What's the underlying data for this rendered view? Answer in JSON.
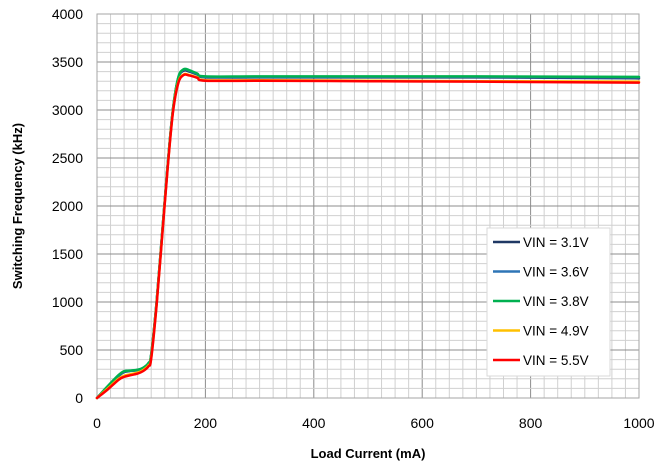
{
  "chart_data": {
    "type": "line",
    "title": "",
    "xlabel": "Load Current (mA)",
    "ylabel": "Switching Frequency (kHz)",
    "xlim": [
      0,
      1000
    ],
    "ylim": [
      0,
      4000
    ],
    "x_ticks": [
      "0",
      "200",
      "400",
      "600",
      "800",
      "1000"
    ],
    "y_ticks": [
      "0",
      "500",
      "1000",
      "1500",
      "2000",
      "2500",
      "3000",
      "3500",
      "4000"
    ],
    "grid": true,
    "legend_position": "bottom-right",
    "series": [
      {
        "name": "VIN = 3.1V",
        "color": "#1f3864",
        "points": [
          [
            0,
            0
          ],
          [
            20,
            120
          ],
          [
            40,
            230
          ],
          [
            50,
            270
          ],
          [
            60,
            280
          ],
          [
            75,
            290
          ],
          [
            85,
            310
          ],
          [
            95,
            360
          ],
          [
            100,
            450
          ],
          [
            110,
            1000
          ],
          [
            120,
            1700
          ],
          [
            130,
            2400
          ],
          [
            140,
            3000
          ],
          [
            150,
            3330
          ],
          [
            160,
            3410
          ],
          [
            170,
            3400
          ],
          [
            185,
            3370
          ],
          [
            200,
            3340
          ],
          [
            300,
            3340
          ],
          [
            500,
            3340
          ],
          [
            700,
            3340
          ],
          [
            1000,
            3330
          ]
        ]
      },
      {
        "name": "VIN = 3.6V",
        "color": "#2e75b6",
        "points": [
          [
            0,
            0
          ],
          [
            20,
            120
          ],
          [
            40,
            235
          ],
          [
            50,
            275
          ],
          [
            60,
            282
          ],
          [
            75,
            292
          ],
          [
            85,
            312
          ],
          [
            95,
            362
          ],
          [
            100,
            452
          ],
          [
            110,
            1000
          ],
          [
            120,
            1700
          ],
          [
            130,
            2400
          ],
          [
            140,
            3000
          ],
          [
            150,
            3335
          ],
          [
            160,
            3420
          ],
          [
            170,
            3410
          ],
          [
            185,
            3375
          ],
          [
            200,
            3345
          ],
          [
            300,
            3345
          ],
          [
            500,
            3345
          ],
          [
            700,
            3345
          ],
          [
            1000,
            3340
          ]
        ]
      },
      {
        "name": "VIN = 3.8V",
        "color": "#00b050",
        "points": [
          [
            0,
            0
          ],
          [
            20,
            125
          ],
          [
            40,
            240
          ],
          [
            50,
            280
          ],
          [
            60,
            285
          ],
          [
            75,
            295
          ],
          [
            85,
            315
          ],
          [
            95,
            365
          ],
          [
            100,
            455
          ],
          [
            110,
            1000
          ],
          [
            120,
            1700
          ],
          [
            130,
            2400
          ],
          [
            140,
            3000
          ],
          [
            150,
            3340
          ],
          [
            160,
            3425
          ],
          [
            170,
            3415
          ],
          [
            185,
            3380
          ],
          [
            200,
            3350
          ],
          [
            300,
            3350
          ],
          [
            500,
            3350
          ],
          [
            700,
            3350
          ],
          [
            1000,
            3345
          ]
        ]
      },
      {
        "name": "VIN = 4.9V",
        "color": "#ffc000",
        "points": [
          [
            0,
            0
          ],
          [
            20,
            100
          ],
          [
            40,
            200
          ],
          [
            50,
            230
          ],
          [
            60,
            245
          ],
          [
            75,
            265
          ],
          [
            85,
            290
          ],
          [
            95,
            340
          ],
          [
            100,
            420
          ],
          [
            110,
            980
          ],
          [
            120,
            1680
          ],
          [
            130,
            2380
          ],
          [
            140,
            2980
          ],
          [
            150,
            3290
          ],
          [
            160,
            3370
          ],
          [
            170,
            3365
          ],
          [
            185,
            3340
          ],
          [
            200,
            3310
          ],
          [
            300,
            3310
          ],
          [
            500,
            3305
          ],
          [
            700,
            3300
          ],
          [
            1000,
            3295
          ]
        ]
      },
      {
        "name": "VIN = 5.5V",
        "color": "#ff0000",
        "points": [
          [
            0,
            0
          ],
          [
            20,
            90
          ],
          [
            40,
            190
          ],
          [
            50,
            220
          ],
          [
            60,
            235
          ],
          [
            75,
            255
          ],
          [
            85,
            280
          ],
          [
            95,
            330
          ],
          [
            100,
            410
          ],
          [
            110,
            970
          ],
          [
            120,
            1670
          ],
          [
            130,
            2370
          ],
          [
            140,
            2970
          ],
          [
            150,
            3280
          ],
          [
            160,
            3365
          ],
          [
            170,
            3360
          ],
          [
            185,
            3335
          ],
          [
            200,
            3305
          ],
          [
            300,
            3305
          ],
          [
            500,
            3300
          ],
          [
            700,
            3295
          ],
          [
            1000,
            3285
          ]
        ]
      }
    ]
  }
}
